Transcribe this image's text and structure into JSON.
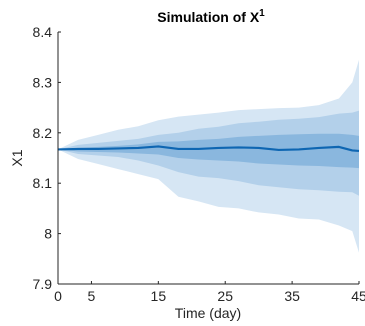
{
  "chart_data": {
    "type": "area",
    "title": "Simulation of X",
    "title_superscript": "1",
    "xlabel": "Time (day)",
    "ylabel": "X1",
    "xlim": [
      0,
      45
    ],
    "ylim": [
      7.9,
      8.4
    ],
    "xticks": [
      0,
      5,
      15,
      25,
      35,
      45
    ],
    "xtick_labels": [
      "0",
      "5",
      "15",
      "25",
      "35",
      "45"
    ],
    "yticks": [
      7.9,
      8,
      8.1,
      8.2,
      8.3,
      8.4
    ],
    "ytick_labels": [
      "7.9",
      "8",
      "8.1",
      "8.2",
      "8.3",
      "8.4"
    ],
    "grid": false,
    "colors": {
      "band_outer": "#d6e6f4",
      "band_middle": "#b3d0ea",
      "band_inner": "#8ab7de",
      "line": "#0e66b2"
    },
    "x": [
      0,
      3,
      6,
      9,
      12,
      15,
      18,
      21,
      24,
      27,
      30,
      33,
      36,
      39,
      42,
      44,
      45
    ],
    "series": [
      {
        "role": "outer_band_upper",
        "values": [
          8.167,
          8.186,
          8.196,
          8.206,
          8.213,
          8.225,
          8.232,
          8.236,
          8.24,
          8.245,
          8.247,
          8.249,
          8.25,
          8.255,
          8.268,
          8.3,
          8.345
        ]
      },
      {
        "role": "outer_band_lower",
        "values": [
          8.167,
          8.148,
          8.138,
          8.128,
          8.118,
          8.108,
          8.073,
          8.064,
          8.053,
          8.05,
          8.042,
          8.038,
          8.03,
          8.028,
          8.016,
          8.005,
          7.962
        ]
      },
      {
        "role": "middle_band_upper",
        "values": [
          8.167,
          8.176,
          8.18,
          8.184,
          8.188,
          8.196,
          8.2,
          8.208,
          8.212,
          8.219,
          8.222,
          8.226,
          8.228,
          8.231,
          8.238,
          8.24,
          8.244
        ]
      },
      {
        "role": "middle_band_lower",
        "values": [
          8.167,
          8.158,
          8.155,
          8.152,
          8.145,
          8.135,
          8.122,
          8.113,
          8.11,
          8.104,
          8.096,
          8.092,
          8.088,
          8.086,
          8.083,
          8.082,
          8.075
        ]
      },
      {
        "role": "inner_band_upper",
        "values": [
          8.167,
          8.17,
          8.172,
          8.174,
          8.177,
          8.182,
          8.183,
          8.186,
          8.188,
          8.192,
          8.194,
          8.196,
          8.197,
          8.198,
          8.198,
          8.196,
          8.194
        ]
      },
      {
        "role": "inner_band_lower",
        "values": [
          8.167,
          8.163,
          8.162,
          8.161,
          8.159,
          8.157,
          8.15,
          8.147,
          8.145,
          8.143,
          8.139,
          8.137,
          8.135,
          8.134,
          8.132,
          8.131,
          8.13
        ]
      },
      {
        "role": "median",
        "values": [
          8.167,
          8.168,
          8.168,
          8.169,
          8.17,
          8.173,
          8.168,
          8.168,
          8.17,
          8.171,
          8.17,
          8.166,
          8.167,
          8.17,
          8.172,
          8.165,
          8.164
        ]
      }
    ]
  }
}
